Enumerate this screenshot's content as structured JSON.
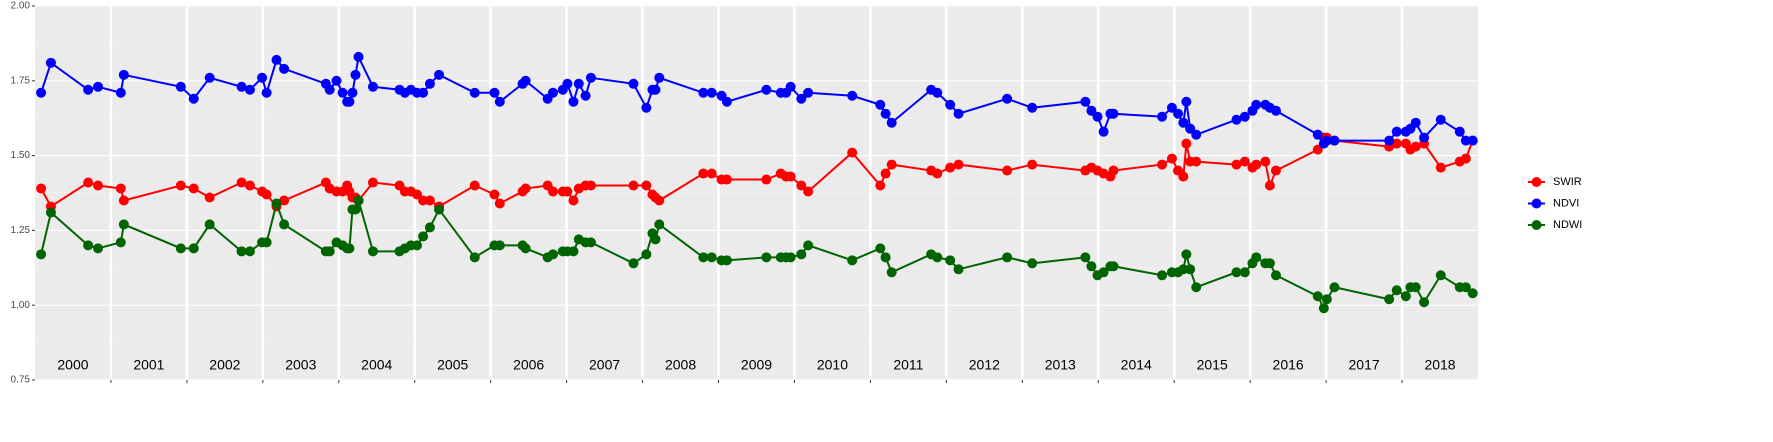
{
  "chart_data": {
    "type": "line",
    "x": [
      2000.08,
      2000.21,
      2000.7,
      2000.83,
      2001.13,
      2001.17,
      2001.92,
      2002.09,
      2002.3,
      2002.72,
      2002.83,
      2002.99,
      2003.05,
      2003.18,
      2003.28,
      2003.83,
      2003.88,
      2003.97,
      2004.05,
      2004.11,
      2004.14,
      2004.18,
      2004.22,
      2004.26,
      2004.45,
      2004.8,
      2004.87,
      2004.95,
      2005.03,
      2005.11,
      2005.2,
      2005.32,
      2005.79,
      2006.05,
      2006.12,
      2006.42,
      2006.46,
      2006.75,
      2006.82,
      2006.95,
      2007.01,
      2007.09,
      2007.16,
      2007.25,
      2007.32,
      2007.88,
      2008.05,
      2008.13,
      2008.17,
      2008.22,
      2008.8,
      2008.91,
      2009.04,
      2009.11,
      2009.63,
      2009.82,
      2009.89,
      2009.95,
      2010.09,
      2010.18,
      2010.76,
      2011.13,
      2011.2,
      2011.28,
      2011.8,
      2011.88,
      2012.05,
      2012.16,
      2012.8,
      2013.13,
      2013.83,
      2013.91,
      2013.99,
      2014.07,
      2014.16,
      2014.2,
      2014.84,
      2014.97,
      2015.05,
      2015.12,
      2015.16,
      2015.21,
      2015.29,
      2015.82,
      2015.93,
      2016.03,
      2016.08,
      2016.2,
      2016.26,
      2016.34,
      2016.89,
      2016.97,
      2017.01,
      2017.11,
      2017.83,
      2017.93,
      2018.05,
      2018.11,
      2018.18,
      2018.29,
      2018.51,
      2018.76,
      2018.84,
      2018.93
    ],
    "series": [
      {
        "name": "SWIR",
        "color": "#ff0000",
        "values": [
          1.39,
          1.33,
          1.41,
          1.4,
          1.39,
          1.35,
          1.4,
          1.39,
          1.36,
          1.41,
          1.4,
          1.38,
          1.37,
          1.33,
          1.35,
          1.41,
          1.39,
          1.38,
          1.38,
          1.4,
          1.38,
          1.36,
          1.36,
          1.35,
          1.41,
          1.4,
          1.38,
          1.38,
          1.37,
          1.35,
          1.35,
          1.33,
          1.4,
          1.37,
          1.34,
          1.38,
          1.39,
          1.4,
          1.38,
          1.38,
          1.38,
          1.35,
          1.39,
          1.4,
          1.4,
          1.4,
          1.4,
          1.37,
          1.36,
          1.35,
          1.44,
          1.44,
          1.42,
          1.42,
          1.42,
          1.44,
          1.43,
          1.43,
          1.4,
          1.38,
          1.51,
          1.4,
          1.44,
          1.47,
          1.45,
          1.44,
          1.46,
          1.47,
          1.45,
          1.47,
          1.45,
          1.46,
          1.45,
          1.44,
          1.43,
          1.45,
          1.47,
          1.49,
          1.45,
          1.43,
          1.54,
          1.48,
          1.48,
          1.47,
          1.48,
          1.46,
          1.47,
          1.48,
          1.4,
          1.45,
          1.52,
          1.56,
          1.56,
          1.55,
          1.53,
          1.54,
          1.54,
          1.52,
          1.53,
          1.54,
          1.46,
          1.48,
          1.49,
          1.55
        ]
      },
      {
        "name": "NDVI",
        "color": "#0000ff",
        "values": [
          1.71,
          1.81,
          1.72,
          1.73,
          1.71,
          1.77,
          1.73,
          1.69,
          1.76,
          1.73,
          1.72,
          1.76,
          1.71,
          1.82,
          1.79,
          1.74,
          1.72,
          1.75,
          1.71,
          1.68,
          1.68,
          1.71,
          1.77,
          1.83,
          1.73,
          1.72,
          1.71,
          1.72,
          1.71,
          1.71,
          1.74,
          1.77,
          1.71,
          1.71,
          1.68,
          1.74,
          1.75,
          1.69,
          1.71,
          1.72,
          1.74,
          1.68,
          1.74,
          1.7,
          1.76,
          1.74,
          1.66,
          1.72,
          1.72,
          1.76,
          1.71,
          1.71,
          1.7,
          1.68,
          1.72,
          1.71,
          1.71,
          1.73,
          1.69,
          1.71,
          1.7,
          1.67,
          1.64,
          1.61,
          1.72,
          1.71,
          1.67,
          1.64,
          1.69,
          1.66,
          1.68,
          1.65,
          1.63,
          1.58,
          1.64,
          1.64,
          1.63,
          1.66,
          1.64,
          1.61,
          1.68,
          1.59,
          1.57,
          1.62,
          1.63,
          1.65,
          1.67,
          1.67,
          1.66,
          1.65,
          1.57,
          1.54,
          1.55,
          1.55,
          1.55,
          1.58,
          1.58,
          1.59,
          1.61,
          1.56,
          1.62,
          1.58,
          1.55,
          1.55
        ]
      },
      {
        "name": "NDWI",
        "color": "#006400",
        "values": [
          1.17,
          1.31,
          1.2,
          1.19,
          1.21,
          1.27,
          1.19,
          1.19,
          1.27,
          1.18,
          1.18,
          1.21,
          1.21,
          1.34,
          1.27,
          1.18,
          1.18,
          1.21,
          1.2,
          1.19,
          1.19,
          1.32,
          1.32,
          1.35,
          1.18,
          1.18,
          1.19,
          1.2,
          1.2,
          1.23,
          1.26,
          1.32,
          1.16,
          1.2,
          1.2,
          1.2,
          1.19,
          1.16,
          1.17,
          1.18,
          1.18,
          1.18,
          1.22,
          1.21,
          1.21,
          1.14,
          1.17,
          1.24,
          1.22,
          1.27,
          1.16,
          1.16,
          1.15,
          1.15,
          1.16,
          1.16,
          1.16,
          1.16,
          1.17,
          1.2,
          1.15,
          1.19,
          1.16,
          1.11,
          1.17,
          1.16,
          1.15,
          1.12,
          1.16,
          1.14,
          1.16,
          1.13,
          1.1,
          1.11,
          1.13,
          1.13,
          1.1,
          1.11,
          1.11,
          1.12,
          1.17,
          1.12,
          1.06,
          1.11,
          1.11,
          1.14,
          1.16,
          1.14,
          1.14,
          1.1,
          1.03,
          0.99,
          1.02,
          1.06,
          1.02,
          1.05,
          1.03,
          1.06,
          1.06,
          1.01,
          1.1,
          1.06,
          1.06,
          1.04
        ]
      }
    ],
    "xlim": [
      2000,
      2019
    ],
    "xticks": [
      {
        "value": 2000.5,
        "label": "2000"
      },
      {
        "value": 2001.5,
        "label": "2001"
      },
      {
        "value": 2002.5,
        "label": "2002"
      },
      {
        "value": 2003.5,
        "label": "2003"
      },
      {
        "value": 2004.5,
        "label": "2004"
      },
      {
        "value": 2005.5,
        "label": "2005"
      },
      {
        "value": 2006.5,
        "label": "2006"
      },
      {
        "value": 2007.5,
        "label": "2007"
      },
      {
        "value": 2008.5,
        "label": "2008"
      },
      {
        "value": 2009.5,
        "label": "2009"
      },
      {
        "value": 2010.5,
        "label": "2010"
      },
      {
        "value": 2011.5,
        "label": "2011"
      },
      {
        "value": 2012.5,
        "label": "2012"
      },
      {
        "value": 2013.5,
        "label": "2013"
      },
      {
        "value": 2014.5,
        "label": "2014"
      },
      {
        "value": 2015.5,
        "label": "2015"
      },
      {
        "value": 2016.5,
        "label": "2016"
      },
      {
        "value": 2017.5,
        "label": "2017"
      },
      {
        "value": 2018.5,
        "label": "2018"
      }
    ],
    "year_lines": [
      2001,
      2002,
      2003,
      2004,
      2005,
      2006,
      2007,
      2008,
      2009,
      2010,
      2011,
      2012,
      2013,
      2014,
      2015,
      2016,
      2017,
      2018
    ],
    "ylim": [
      0.75,
      2.0
    ],
    "yticks": [
      {
        "value": 0.75,
        "label": "0.75"
      },
      {
        "value": 1.0,
        "label": "1.00"
      },
      {
        "value": 1.25,
        "label": "1.25"
      },
      {
        "value": 1.5,
        "label": "1.50"
      },
      {
        "value": 1.75,
        "label": "1.75"
      },
      {
        "value": 2.0,
        "label": "2.00"
      }
    ],
    "grid": true,
    "legend": "right"
  }
}
